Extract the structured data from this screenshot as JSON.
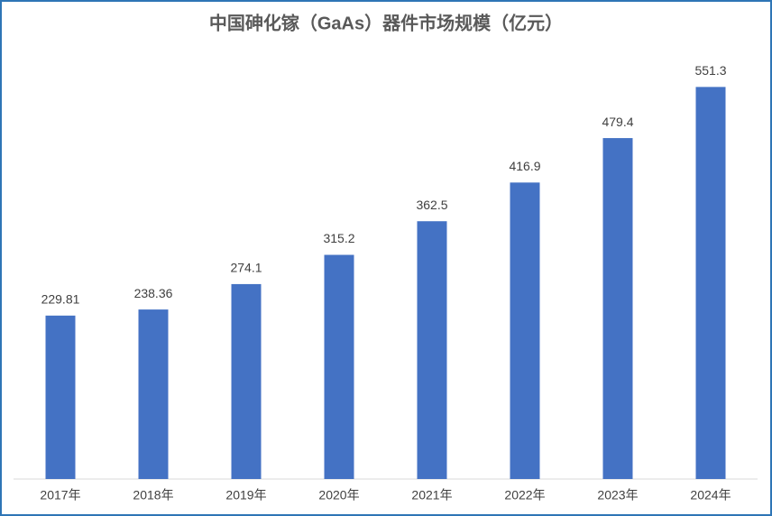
{
  "chart_data": {
    "type": "bar",
    "title": "中国砷化镓（GaAs）器件市场规模（亿元）",
    "categories": [
      "2017年",
      "2018年",
      "2019年",
      "2020年",
      "2021年",
      "2022年",
      "2023年",
      "2024年"
    ],
    "values": [
      229.81,
      238.36,
      274.1,
      315.2,
      362.5,
      416.9,
      479.4,
      551.3
    ],
    "color": "#4472c4",
    "ylim": [
      0,
      600
    ]
  }
}
